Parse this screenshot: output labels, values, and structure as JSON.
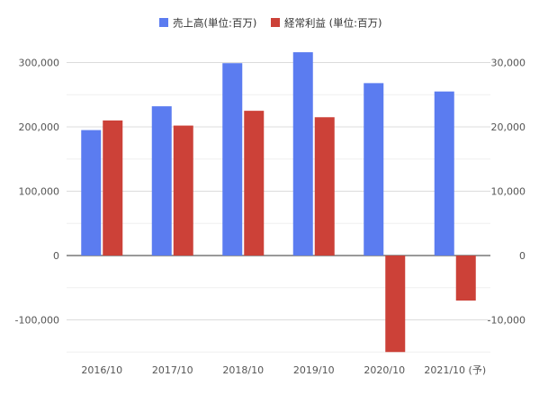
{
  "chart_data": {
    "type": "bar",
    "categories": [
      "2016/10",
      "2017/10",
      "2018/10",
      "2019/10",
      "2020/10",
      "2021/10 (予)"
    ],
    "series": [
      {
        "name": "売上高(単位:百万)",
        "axis": "left",
        "color": "#5b7cf0",
        "values": [
          195000,
          232000,
          299000,
          316000,
          268000,
          255000
        ]
      },
      {
        "name": "経常利益 (単位:百万)",
        "axis": "right",
        "color": "#cc4138",
        "values": [
          21000,
          20200,
          22500,
          21500,
          -15000,
          -7000
        ]
      }
    ],
    "left_axis": {
      "ylim": [
        -150000,
        300000
      ],
      "ticks": [
        300000,
        200000,
        100000,
        0,
        -100000
      ],
      "tick_labels": [
        "300,000",
        "200,000",
        "100,000",
        "0",
        "-100,000"
      ]
    },
    "right_axis": {
      "ylim": [
        -15000,
        30000
      ],
      "ticks": [
        30000,
        20000,
        10000,
        0,
        -10000
      ],
      "tick_labels": [
        "30,000",
        "20,000",
        "10,000",
        "0",
        "-10,000"
      ]
    },
    "grid": true,
    "legend_position": "top-center"
  }
}
